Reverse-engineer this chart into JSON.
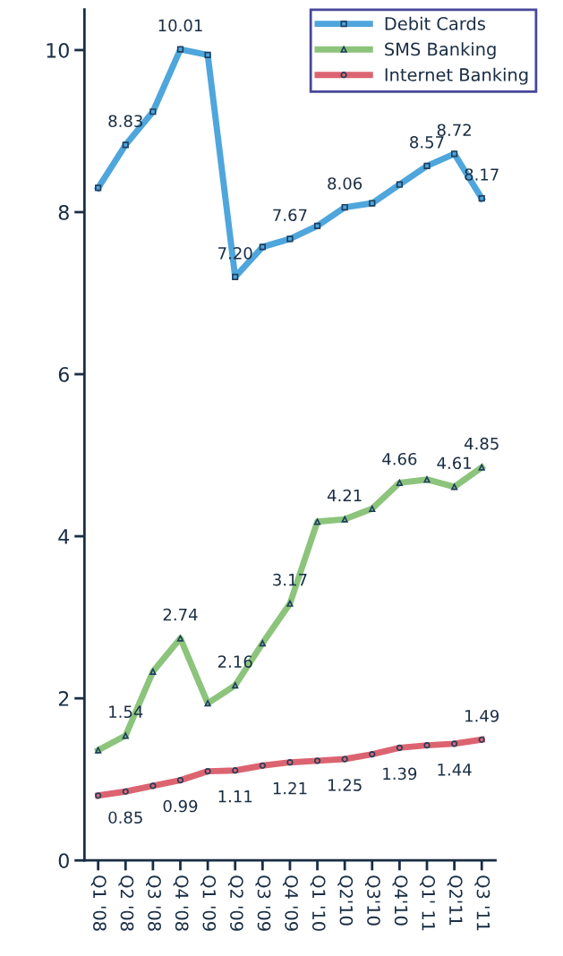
{
  "chart_data": {
    "type": "line",
    "categories": [
      "Q1 '08",
      "Q2 '08",
      "Q3 '08",
      "Q4 '08",
      "Q1 '09",
      "Q2 '09",
      "Q3 '09",
      "Q4 '09",
      "Q1 '10",
      "Q2'10",
      "Q3'10",
      "Q4'10",
      "Q1' 11",
      "Q2'11",
      "Q3 '11"
    ],
    "series": [
      {
        "name": "Debit Cards",
        "color": "#4ea6dc",
        "marker": "square",
        "values": [
          8.3,
          8.83,
          9.24,
          10.01,
          9.94,
          7.2,
          7.57,
          7.67,
          7.83,
          8.06,
          8.11,
          8.34,
          8.57,
          8.72,
          8.17
        ],
        "value_labels": [
          null,
          "8.83",
          null,
          "10.01",
          null,
          "7.20",
          null,
          "7.67",
          null,
          "8.06",
          null,
          null,
          "8.57",
          "8.72",
          "8.17"
        ]
      },
      {
        "name": "SMS Banking",
        "color": "#8cc47c",
        "marker": "triangle",
        "values": [
          1.36,
          1.54,
          2.33,
          2.74,
          1.94,
          2.16,
          2.68,
          3.17,
          4.18,
          4.21,
          4.34,
          4.66,
          4.7,
          4.61,
          4.85
        ],
        "value_labels": [
          null,
          "1.54",
          null,
          "2.74",
          null,
          "2.16",
          null,
          "3.17",
          null,
          "4.21",
          null,
          "4.66",
          null,
          "4.61",
          "4.85"
        ]
      },
      {
        "name": "Internet Banking",
        "color": "#dc6470",
        "marker": "circle",
        "values": [
          0.8,
          0.85,
          0.92,
          0.99,
          1.1,
          1.11,
          1.17,
          1.21,
          1.23,
          1.25,
          1.31,
          1.39,
          1.42,
          1.44,
          1.49
        ],
        "value_labels": [
          null,
          "0.85",
          null,
          "0.99",
          null,
          "1.11",
          null,
          "1.21",
          null,
          "1.25",
          null,
          "1.39",
          null,
          "1.44",
          "1.49"
        ]
      }
    ],
    "ylim": [
      0,
      10.5
    ],
    "yticks": [
      0,
      2,
      4,
      6,
      8,
      10
    ],
    "grid": false,
    "legend": "top right",
    "line_style": "solid"
  }
}
